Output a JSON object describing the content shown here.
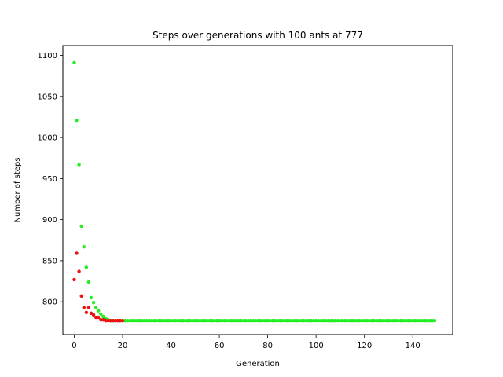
{
  "chart_data": {
    "type": "scatter",
    "title": "Steps over generations with 100 ants at 777",
    "xlabel": "Generation",
    "ylabel": "Number of steps",
    "xlim": [
      -4.7,
      156.5
    ],
    "ylim": [
      760,
      1112
    ],
    "xticks": [
      0,
      20,
      40,
      60,
      80,
      100,
      120,
      140
    ],
    "yticks": [
      800,
      850,
      900,
      950,
      1000,
      1050,
      1100
    ],
    "grid": false,
    "legend": "none",
    "colors": {
      "series_green": "#22ee22",
      "series_red": "#ee1111",
      "axes": "#000000"
    },
    "series": [
      {
        "color": "green",
        "x": [
          0,
          1,
          2,
          3,
          4,
          5,
          6,
          7,
          8,
          9,
          10,
          11,
          12,
          13,
          14,
          15,
          16,
          17,
          18,
          19,
          20,
          21,
          22,
          23,
          24,
          25,
          26,
          27,
          28,
          29,
          30,
          31,
          32,
          33,
          34,
          35,
          36,
          37,
          38,
          39,
          40,
          41,
          42,
          43,
          44,
          45,
          46,
          47,
          48,
          49,
          50,
          51,
          52,
          53,
          54,
          55,
          56,
          57,
          58,
          59,
          60,
          61,
          62,
          63,
          64,
          65,
          66,
          67,
          68,
          69,
          70,
          71,
          72,
          73,
          74,
          75,
          76,
          77,
          78,
          79,
          80,
          81,
          82,
          83,
          84,
          85,
          86,
          87,
          88,
          89,
          90,
          91,
          92,
          93,
          94,
          95,
          96,
          97,
          98,
          99,
          100,
          101,
          102,
          103,
          104,
          105,
          106,
          107,
          108,
          109,
          110,
          111,
          112,
          113,
          114,
          115,
          116,
          117,
          118,
          119,
          120,
          121,
          122,
          123,
          124,
          125,
          126,
          127,
          128,
          129,
          130,
          131,
          132,
          133,
          134,
          135,
          136,
          137,
          138,
          139,
          140,
          141,
          142,
          143,
          144,
          145,
          146,
          147,
          148,
          149
        ],
        "y": [
          1091,
          1021,
          967,
          892,
          867,
          842,
          824,
          805,
          799,
          793,
          789,
          785,
          782,
          780,
          778,
          777,
          777,
          777,
          777,
          777,
          777,
          777,
          777,
          777,
          777,
          777,
          777,
          777,
          777,
          777,
          777,
          777,
          777,
          777,
          777,
          777,
          777,
          777,
          777,
          777,
          777,
          777,
          777,
          777,
          777,
          777,
          777,
          777,
          777,
          777,
          777,
          777,
          777,
          777,
          777,
          777,
          777,
          777,
          777,
          777,
          777,
          777,
          777,
          777,
          777,
          777,
          777,
          777,
          777,
          777,
          777,
          777,
          777,
          777,
          777,
          777,
          777,
          777,
          777,
          777,
          777,
          777,
          777,
          777,
          777,
          777,
          777,
          777,
          777,
          777,
          777,
          777,
          777,
          777,
          777,
          777,
          777,
          777,
          777,
          777,
          777,
          777,
          777,
          777,
          777,
          777,
          777,
          777,
          777,
          777,
          777,
          777,
          777,
          777,
          777,
          777,
          777,
          777,
          777,
          777,
          777,
          777,
          777,
          777,
          777,
          777,
          777,
          777,
          777,
          777,
          777,
          777,
          777,
          777,
          777,
          777,
          777,
          777,
          777,
          777,
          777,
          777,
          777,
          777,
          777,
          777,
          777,
          777,
          777,
          777
        ]
      },
      {
        "color": "red",
        "x": [
          0,
          1,
          2,
          3,
          4,
          5,
          6,
          7,
          8,
          9,
          10,
          11,
          12,
          13,
          14,
          15,
          16,
          17,
          18,
          19,
          20
        ],
        "y": [
          827,
          859,
          837,
          807,
          793,
          787,
          793,
          786,
          784,
          781,
          781,
          778,
          778,
          777,
          777,
          777,
          777,
          777,
          777,
          777,
          777
        ]
      }
    ]
  }
}
